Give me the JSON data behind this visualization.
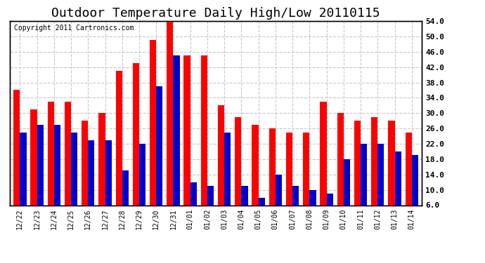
{
  "title": "Outdoor Temperature Daily High/Low 20110115",
  "copyright": "Copyright 2011 Cartronics.com",
  "categories": [
    "12/22",
    "12/23",
    "12/24",
    "12/25",
    "12/26",
    "12/27",
    "12/28",
    "12/29",
    "12/30",
    "12/31",
    "01/01",
    "01/02",
    "01/03",
    "01/04",
    "01/05",
    "01/06",
    "01/07",
    "01/08",
    "01/09",
    "01/10",
    "01/11",
    "01/12",
    "01/13",
    "01/14"
  ],
  "high": [
    36,
    31,
    33,
    33,
    28,
    30,
    41,
    43,
    49,
    54,
    45,
    45,
    32,
    29,
    27,
    26,
    25,
    25,
    33,
    30,
    28,
    29,
    28,
    25
  ],
  "low": [
    25,
    27,
    27,
    25,
    23,
    23,
    15,
    22,
    37,
    45,
    12,
    11,
    25,
    11,
    8,
    14,
    11,
    10,
    9,
    18,
    22,
    22,
    20,
    19
  ],
  "high_color": "#ff0000",
  "low_color": "#0000cc",
  "background_color": "#ffffff",
  "grid_color": "#c8c8c8",
  "ylim": [
    6,
    54
  ],
  "yticks": [
    6.0,
    10.0,
    14.0,
    18.0,
    22.0,
    26.0,
    30.0,
    34.0,
    38.0,
    42.0,
    46.0,
    50.0,
    54.0
  ],
  "title_fontsize": 13,
  "copyright_fontsize": 7,
  "bar_width": 0.38,
  "tick_fontsize": 8,
  "xtick_fontsize": 7
}
